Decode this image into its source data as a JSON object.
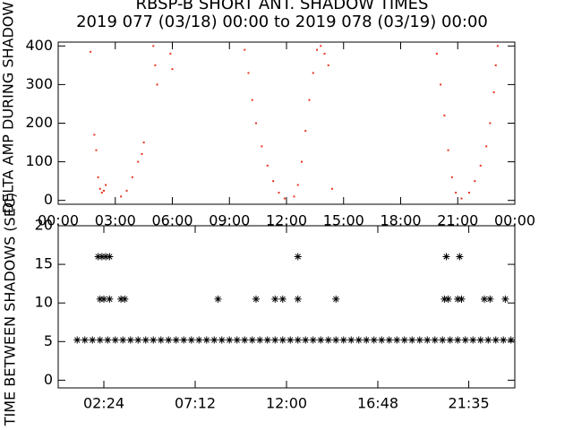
{
  "chart_data": [
    {
      "type": "scatter",
      "title": "RBSP-B SHORT ANT. SHADOW TIMES",
      "subtitle": "2019 077 (03/18) 00:00 to 2019 078 (03/19) 00:00",
      "y_label": "DELTA AMP DURING SHADOW",
      "color": "#e8341c",
      "marker": "dot",
      "xlim": [
        0,
        24
      ],
      "xticks": [
        {
          "value": 0,
          "label": "00:00"
        },
        {
          "value": 3,
          "label": "03:00"
        },
        {
          "value": 6,
          "label": "06:00"
        },
        {
          "value": 9,
          "label": "09:00"
        },
        {
          "value": 12,
          "label": "12:00"
        },
        {
          "value": 15,
          "label": "15:00"
        },
        {
          "value": 18,
          "label": "18:00"
        },
        {
          "value": 21,
          "label": "21:00"
        },
        {
          "value": 24,
          "label": "00:00"
        }
      ],
      "ylim": [
        -10,
        410
      ],
      "yticks": [
        0,
        100,
        200,
        300,
        400
      ],
      "x": [
        1.7,
        1.9,
        2.0,
        2.1,
        2.2,
        2.3,
        2.4,
        2.5,
        3.3,
        3.6,
        3.9,
        4.2,
        4.4,
        4.5,
        5.0,
        5.1,
        5.2,
        5.9,
        6.0,
        9.8,
        10.0,
        10.2,
        10.4,
        10.7,
        11.0,
        11.3,
        11.6,
        11.9,
        12.4,
        12.6,
        12.8,
        13.0,
        13.2,
        13.4,
        13.6,
        13.8,
        14.0,
        14.2,
        14.4,
        19.9,
        20.1,
        20.3,
        20.5,
        20.7,
        20.9,
        21.2,
        21.6,
        21.9,
        22.2,
        22.5,
        22.7,
        22.9,
        23.0,
        23.1
      ],
      "values": [
        385,
        170,
        130,
        60,
        30,
        20,
        25,
        40,
        10,
        25,
        60,
        100,
        120,
        150,
        400,
        350,
        300,
        380,
        340,
        390,
        330,
        260,
        200,
        140,
        90,
        50,
        20,
        5,
        10,
        40,
        100,
        180,
        260,
        330,
        390,
        400,
        380,
        350,
        30,
        380,
        300,
        220,
        130,
        60,
        20,
        5,
        20,
        50,
        90,
        140,
        200,
        280,
        350,
        400
      ]
    },
    {
      "type": "scatter",
      "y_label": "TIME BETWEEN SHADOWS (SEC)",
      "color": "#000000",
      "marker": "asterisk",
      "xlim": [
        0,
        24
      ],
      "xticks": [
        {
          "value": 2.4,
          "label": "02:24"
        },
        {
          "value": 7.2,
          "label": "07:12"
        },
        {
          "value": 12.0,
          "label": "12:00"
        },
        {
          "value": 16.8,
          "label": "16:48"
        },
        {
          "value": 21.58,
          "label": "21:35"
        }
      ],
      "ylim": [
        -1,
        20
      ],
      "yticks": [
        0,
        5,
        10,
        15,
        20
      ],
      "x": [
        1.0,
        1.4,
        1.8,
        2.2,
        2.6,
        3.0,
        3.4,
        3.8,
        4.2,
        4.6,
        5.0,
        5.4,
        5.8,
        6.2,
        6.6,
        7.0,
        7.4,
        7.8,
        8.2,
        8.6,
        9.0,
        9.4,
        9.8,
        10.2,
        10.6,
        11.0,
        11.4,
        11.8,
        12.2,
        12.6,
        13.0,
        13.4,
        13.8,
        14.2,
        14.6,
        15.0,
        15.4,
        15.8,
        16.2,
        16.6,
        17.0,
        17.4,
        17.8,
        18.2,
        18.6,
        19.0,
        19.4,
        19.8,
        20.2,
        20.6,
        21.0,
        21.4,
        21.8,
        22.2,
        22.6,
        23.0,
        23.4,
        23.8,
        2.1,
        2.3,
        2.5,
        2.7,
        12.6,
        20.4,
        21.1,
        2.2,
        2.4,
        2.7,
        3.3,
        3.5,
        8.4,
        10.4,
        11.4,
        11.8,
        12.6,
        14.6,
        20.3,
        20.5,
        21.0,
        21.2,
        22.4,
        22.7,
        23.5
      ],
      "values": [
        5.2,
        5.2,
        5.2,
        5.2,
        5.2,
        5.2,
        5.2,
        5.2,
        5.2,
        5.2,
        5.2,
        5.2,
        5.2,
        5.2,
        5.2,
        5.2,
        5.2,
        5.2,
        5.2,
        5.2,
        5.2,
        5.2,
        5.2,
        5.2,
        5.2,
        5.2,
        5.2,
        5.2,
        5.2,
        5.2,
        5.2,
        5.2,
        5.2,
        5.2,
        5.2,
        5.2,
        5.2,
        5.2,
        5.2,
        5.2,
        5.2,
        5.2,
        5.2,
        5.2,
        5.2,
        5.2,
        5.2,
        5.2,
        5.2,
        5.2,
        5.2,
        5.2,
        5.2,
        5.2,
        5.2,
        5.2,
        5.2,
        5.2,
        16,
        16,
        16,
        16,
        16,
        16,
        16,
        10.5,
        10.5,
        10.5,
        10.5,
        10.5,
        10.5,
        10.5,
        10.5,
        10.5,
        10.5,
        10.5,
        10.5,
        10.5,
        10.5,
        10.5,
        10.5,
        10.5,
        10.5
      ]
    }
  ]
}
